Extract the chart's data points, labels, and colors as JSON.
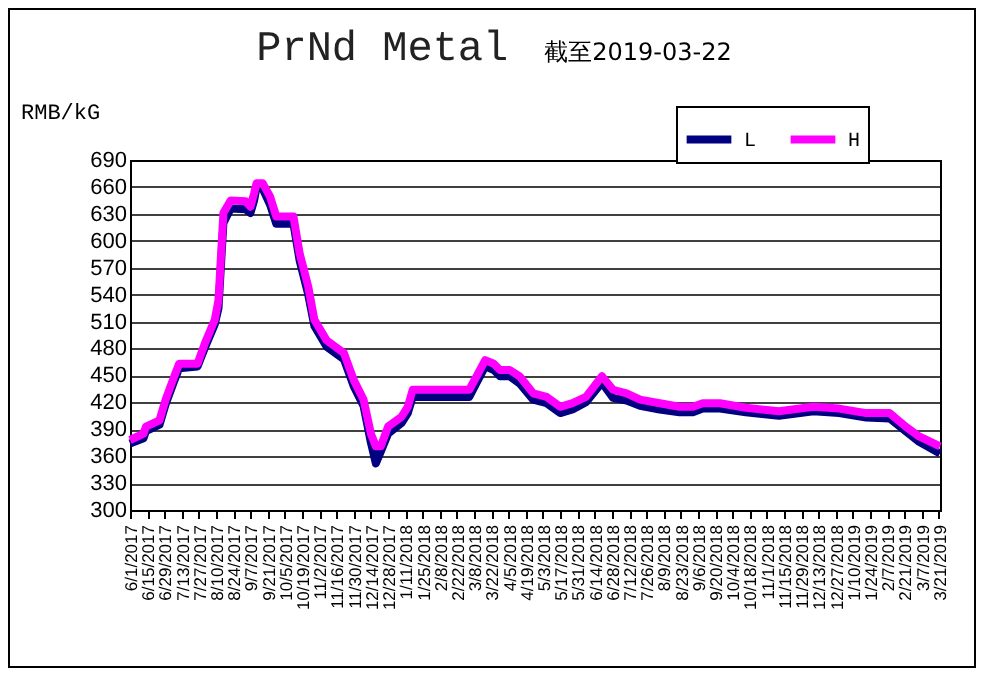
{
  "chart_data": {
    "type": "line",
    "title": "PrNd Metal",
    "subtitle": "截至2019-03-22",
    "ylabel": "RMB/kG",
    "x": [
      "2017-06-01",
      "2017-06-12",
      "2017-06-14",
      "2017-06-25",
      "2017-06-30",
      "2017-07-07",
      "2017-07-11",
      "2017-07-26",
      "2017-08-01",
      "2017-08-09",
      "2017-08-12",
      "2017-08-16",
      "2017-08-22",
      "2017-09-03",
      "2017-09-07",
      "2017-09-10",
      "2017-09-12",
      "2017-09-17",
      "2017-09-23",
      "2017-09-28",
      "2017-10-12",
      "2017-10-17",
      "2017-10-24",
      "2017-10-29",
      "2017-11-08",
      "2017-11-22",
      "2017-11-30",
      "2017-12-08",
      "2017-12-14",
      "2017-12-18",
      "2017-12-22",
      "2017-12-28",
      "2018-01-08",
      "2018-01-13",
      "2018-01-17",
      "2018-01-27",
      "2018-03-04",
      "2018-03-10",
      "2018-03-17",
      "2018-03-24",
      "2018-03-29",
      "2018-04-06",
      "2018-04-14",
      "2018-04-25",
      "2018-05-06",
      "2018-05-17",
      "2018-05-27",
      "2018-06-07",
      "2018-06-20",
      "2018-06-29",
      "2018-07-10",
      "2018-07-21",
      "2018-08-06",
      "2018-08-22",
      "2018-09-02",
      "2018-09-10",
      "2018-09-24",
      "2018-10-15",
      "2018-11-11",
      "2018-12-09",
      "2018-12-30",
      "2019-01-21",
      "2019-02-09",
      "2019-02-22",
      "2019-03-05",
      "2019-03-22"
    ],
    "series": [
      {
        "name": "L",
        "color": "#000080",
        "values": [
          374,
          380,
          388,
          395,
          418,
          444,
          458,
          460,
          481,
          507,
          525,
          620,
          636,
          635,
          631,
          645,
          660,
          658,
          640,
          619,
          619,
          578,
          540,
          505,
          482,
          468,
          438,
          416,
          375,
          352,
          365,
          385,
          397,
          408,
          426,
          426,
          426,
          442,
          460,
          456,
          449,
          449,
          441,
          423,
          419,
          408,
          412,
          420,
          442,
          425,
          422,
          416,
          412,
          409,
          409,
          413,
          413,
          409,
          405,
          410,
          408,
          403,
          402,
          388,
          376,
          363
        ]
      },
      {
        "name": "H",
        "color": "#ff00ff",
        "values": [
          378,
          385,
          393,
          400,
          423,
          449,
          463,
          463,
          486,
          512,
          534,
          631,
          645,
          644,
          638,
          653,
          664,
          664,
          649,
          627,
          627,
          586,
          549,
          512,
          489,
          475,
          445,
          423,
          385,
          371,
          371,
          393,
          404,
          415,
          434,
          434,
          434,
          449,
          467,
          463,
          456,
          456,
          449,
          430,
          426,
          415,
          419,
          426,
          449,
          434,
          430,
          423,
          419,
          415,
          415,
          419,
          419,
          414,
          410,
          415,
          413,
          408,
          408,
          393,
          382,
          371
        ]
      }
    ],
    "xlim": [
      "2017-06-01",
      "2019-03-22"
    ],
    "xticks": [
      {
        "value": "2017-06-01",
        "label": "6/1/2017"
      },
      {
        "value": "2017-06-15",
        "label": "6/15/2017"
      },
      {
        "value": "2017-06-29",
        "label": "6/29/2017"
      },
      {
        "value": "2017-07-13",
        "label": "7/13/2017"
      },
      {
        "value": "2017-07-27",
        "label": "7/27/2017"
      },
      {
        "value": "2017-08-10",
        "label": "8/10/2017"
      },
      {
        "value": "2017-08-24",
        "label": "8/24/2017"
      },
      {
        "value": "2017-09-07",
        "label": "9/7/2017"
      },
      {
        "value": "2017-09-21",
        "label": "9/21/2017"
      },
      {
        "value": "2017-10-05",
        "label": "10/5/2017"
      },
      {
        "value": "2017-10-19",
        "label": "10/19/2017"
      },
      {
        "value": "2017-11-02",
        "label": "11/2/2017"
      },
      {
        "value": "2017-11-16",
        "label": "11/16/2017"
      },
      {
        "value": "2017-11-30",
        "label": "11/30/2017"
      },
      {
        "value": "2017-12-14",
        "label": "12/14/2017"
      },
      {
        "value": "2017-12-28",
        "label": "12/28/2017"
      },
      {
        "value": "2018-01-11",
        "label": "1/11/2018"
      },
      {
        "value": "2018-01-25",
        "label": "1/25/2018"
      },
      {
        "value": "2018-02-08",
        "label": "2/8/2018"
      },
      {
        "value": "2018-02-22",
        "label": "2/22/2018"
      },
      {
        "value": "2018-03-08",
        "label": "3/8/2018"
      },
      {
        "value": "2018-03-22",
        "label": "3/22/2018"
      },
      {
        "value": "2018-04-05",
        "label": "4/5/2018"
      },
      {
        "value": "2018-04-19",
        "label": "4/19/2018"
      },
      {
        "value": "2018-05-03",
        "label": "5/3/2018"
      },
      {
        "value": "2018-05-17",
        "label": "5/17/2018"
      },
      {
        "value": "2018-05-31",
        "label": "5/31/2018"
      },
      {
        "value": "2018-06-14",
        "label": "6/14/2018"
      },
      {
        "value": "2018-06-28",
        "label": "6/28/2018"
      },
      {
        "value": "2018-07-12",
        "label": "7/12/2018"
      },
      {
        "value": "2018-07-26",
        "label": "7/26/2018"
      },
      {
        "value": "2018-08-09",
        "label": "8/9/2018"
      },
      {
        "value": "2018-08-23",
        "label": "8/23/2018"
      },
      {
        "value": "2018-09-06",
        "label": "9/6/2018"
      },
      {
        "value": "2018-09-20",
        "label": "9/20/2018"
      },
      {
        "value": "2018-10-04",
        "label": "10/4/2018"
      },
      {
        "value": "2018-10-18",
        "label": "10/18/2018"
      },
      {
        "value": "2018-11-01",
        "label": "11/1/2018"
      },
      {
        "value": "2018-11-15",
        "label": "11/15/2018"
      },
      {
        "value": "2018-11-29",
        "label": "11/29/2018"
      },
      {
        "value": "2018-12-13",
        "label": "12/13/2018"
      },
      {
        "value": "2018-12-27",
        "label": "12/27/2018"
      },
      {
        "value": "2019-01-10",
        "label": "1/10/2019"
      },
      {
        "value": "2019-01-24",
        "label": "1/24/2019"
      },
      {
        "value": "2019-02-07",
        "label": "2/7/2019"
      },
      {
        "value": "2019-02-21",
        "label": "2/21/2019"
      },
      {
        "value": "2019-03-07",
        "label": "3/7/2019"
      },
      {
        "value": "2019-03-21",
        "label": "3/21/2019"
      }
    ],
    "ylim": [
      300,
      690
    ],
    "yticks": [
      300,
      330,
      360,
      390,
      420,
      450,
      480,
      510,
      540,
      570,
      600,
      630,
      660,
      690
    ],
    "grid": "y",
    "legend": "top right",
    "marker": "none",
    "line_style": "solid"
  }
}
